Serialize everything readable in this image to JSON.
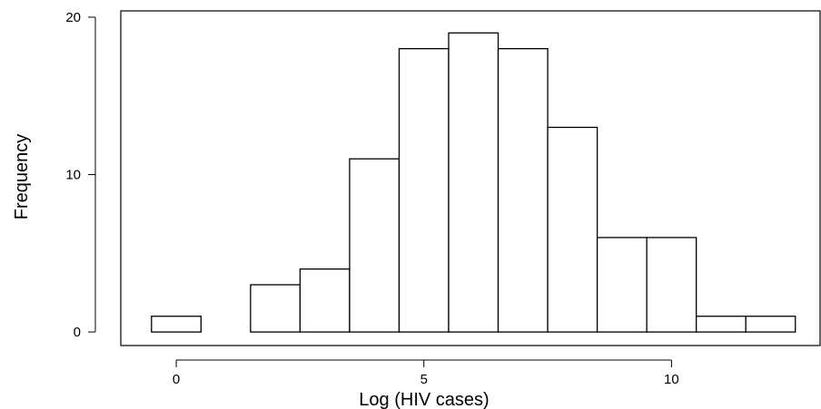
{
  "chart_data": {
    "type": "histogram",
    "xlabel": "Log (HIV cases)",
    "ylabel": "Frequency",
    "bins": [
      -0.5,
      0.5,
      1.5,
      2.5,
      3.5,
      4.5,
      5.5,
      6.5,
      7.5,
      8.5,
      9.5,
      10.5,
      11.5,
      12.5
    ],
    "values": [
      1,
      0,
      3,
      4,
      11,
      18,
      19,
      18,
      13,
      6,
      6,
      1,
      1
    ],
    "color": "#ffffff",
    "xlim": [
      -1.12,
      13.0
    ],
    "ylim": [
      -0.86,
      20.4
    ],
    "xticks": [
      0,
      5,
      10
    ],
    "yticks": [
      0,
      10,
      20
    ]
  }
}
